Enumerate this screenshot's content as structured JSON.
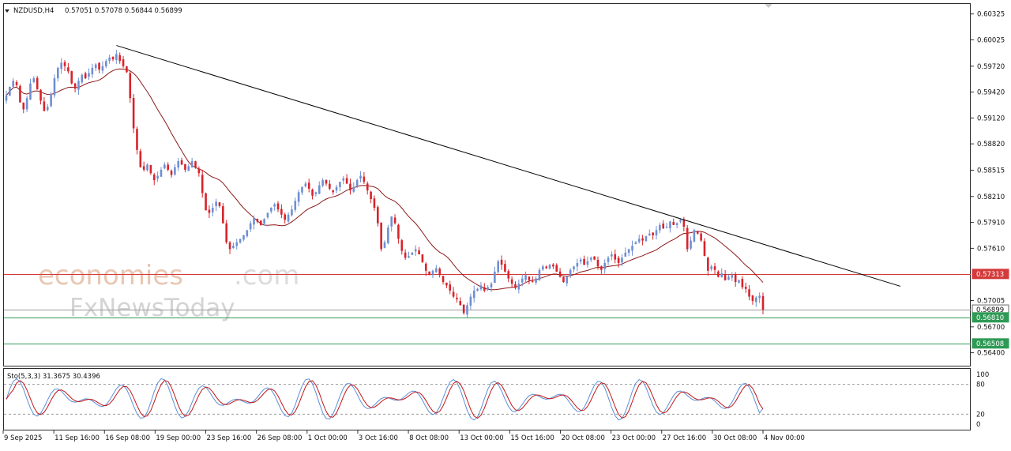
{
  "header": {
    "symbol_timeframe": "NZDUSD,H4",
    "ohlc": "0.57051 0.57078 0.56844 0.56899"
  },
  "oscillator_label": "Sto(5,3,3) 31.3675 30.4396",
  "watermark": {
    "line1_main": "economies",
    "line1_tld": ".com",
    "line2": "FxNewsToday"
  },
  "colors": {
    "bull": "#6f8fd3",
    "bear": "#d8232a",
    "trendline": "#000000",
    "moving_average": "#8b1a1a",
    "resistance": "#d43a3a",
    "support": "#2f9a55",
    "stoch_main": "#5b8fd6",
    "stoch_signal": "#c0171b"
  },
  "chart_data": [
    {
      "type": "candlestick",
      "symbol": "NZDUSD",
      "timeframe": "H4",
      "ylim": [
        0.5625,
        0.6045
      ],
      "y_ticks": [
        "0.60325",
        "0.60025",
        "0.59720",
        "0.59420",
        "0.59120",
        "0.58820",
        "0.58515",
        "0.58210",
        "0.57910",
        "0.57610",
        "0.57005",
        "0.56700",
        "0.56400"
      ],
      "x_ticks": [
        "9 Sep 2025",
        "11 Sep 16:00",
        "16 Sep 08:00",
        "19 Sep 00:00",
        "23 Sep 16:00",
        "26 Sep 08:00",
        "1 Oct 00:00",
        "3 Oct 16:00",
        "8 Oct 08:00",
        "13 Oct 00:00",
        "15 Oct 16:00",
        "20 Oct 08:00",
        "23 Oct 00:00",
        "27 Oct 16:00",
        "30 Oct 08:00",
        "4 Nov 00:00"
      ],
      "current_price": "0.56899",
      "series": [
        {
          "name": "Close",
          "values": [
            0.5938,
            0.5948,
            0.5955,
            0.595,
            0.593,
            0.5922,
            0.5935,
            0.5952,
            0.5958,
            0.5945,
            0.5932,
            0.592,
            0.5925,
            0.594,
            0.5958,
            0.597,
            0.5976,
            0.5972,
            0.5966,
            0.5952,
            0.5946,
            0.5955,
            0.5962,
            0.5958,
            0.5964,
            0.597,
            0.5974,
            0.5968,
            0.5972,
            0.5978,
            0.5982,
            0.598,
            0.5986,
            0.5978,
            0.5972,
            0.5965,
            0.5935,
            0.59,
            0.5875,
            0.5855,
            0.5852,
            0.5858,
            0.5848,
            0.584,
            0.5845,
            0.5852,
            0.5858,
            0.5852,
            0.5846,
            0.5855,
            0.5862,
            0.5858,
            0.5852,
            0.5856,
            0.5862,
            0.5855,
            0.5848,
            0.5825,
            0.5805,
            0.5802,
            0.5808,
            0.5815,
            0.581,
            0.579,
            0.5768,
            0.576,
            0.5764,
            0.5768,
            0.5772,
            0.5776,
            0.5782,
            0.579,
            0.5796,
            0.5792,
            0.5788,
            0.5795,
            0.5802,
            0.5808,
            0.5812,
            0.5806,
            0.58,
            0.5794,
            0.58,
            0.5806,
            0.5816,
            0.5826,
            0.5832,
            0.5836,
            0.583,
            0.5822,
            0.5826,
            0.5834,
            0.584,
            0.5836,
            0.583,
            0.5826,
            0.5832,
            0.5838,
            0.5842,
            0.5836,
            0.5828,
            0.5832,
            0.584,
            0.5845,
            0.5838,
            0.5828,
            0.5818,
            0.5808,
            0.579,
            0.576,
            0.5768,
            0.5785,
            0.5798,
            0.579,
            0.5772,
            0.5758,
            0.575,
            0.5752,
            0.5756,
            0.576,
            0.5754,
            0.5745,
            0.5735,
            0.573,
            0.5735,
            0.5738,
            0.573,
            0.5722,
            0.5718,
            0.5712,
            0.5705,
            0.5702,
            0.5695,
            0.5686,
            0.5695,
            0.5705,
            0.5712,
            0.5714,
            0.5718,
            0.5712,
            0.5716,
            0.572,
            0.5734,
            0.5746,
            0.5742,
            0.5734,
            0.5726,
            0.572,
            0.5715,
            0.572,
            0.5726,
            0.573,
            0.5724,
            0.5722,
            0.5726,
            0.5736,
            0.574,
            0.5738,
            0.5742,
            0.574,
            0.5734,
            0.5728,
            0.5722,
            0.5728,
            0.5736,
            0.574,
            0.5744,
            0.5748,
            0.5742,
            0.5746,
            0.575,
            0.5748,
            0.574,
            0.5736,
            0.5744,
            0.575,
            0.5754,
            0.5748,
            0.5744,
            0.575,
            0.5756,
            0.576,
            0.5764,
            0.5768,
            0.5772,
            0.577,
            0.5775,
            0.5778,
            0.5776,
            0.5782,
            0.5788,
            0.5784,
            0.5786,
            0.5792,
            0.5788,
            0.579,
            0.5794,
            0.5786,
            0.576,
            0.577,
            0.5782,
            0.5778,
            0.577,
            0.5752,
            0.5735,
            0.574,
            0.5736,
            0.5728,
            0.5732,
            0.5724,
            0.5728,
            0.573,
            0.5722,
            0.5724,
            0.5716,
            0.5714,
            0.5705,
            0.57,
            0.5704,
            0.5706,
            0.569
          ]
        }
      ]
    },
    {
      "type": "line",
      "name": "Stochastic Oscillator",
      "ylim": [
        0,
        100
      ],
      "y_ticks": [
        "100",
        "80",
        "20",
        "0"
      ],
      "levels": [
        80,
        20
      ],
      "last_values": [
        31.3675,
        30.4396
      ]
    }
  ]
}
